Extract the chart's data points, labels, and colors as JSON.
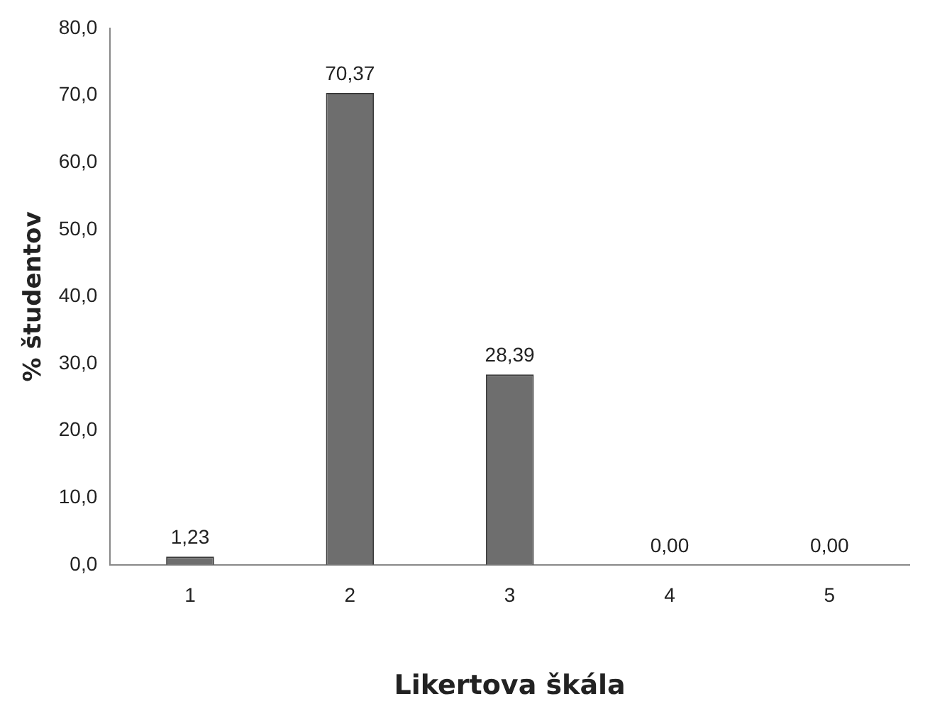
{
  "chart_data": {
    "type": "bar",
    "xlabel": "Likertova škála",
    "ylabel": "% študentov",
    "categories": [
      "1",
      "2",
      "3",
      "4",
      "5"
    ],
    "values": [
      1.23,
      70.37,
      28.39,
      0,
      0
    ],
    "value_labels": [
      "1,23",
      "70,37",
      "28,39",
      "0,00",
      "0,00"
    ],
    "color": "#6e6e6e",
    "ylim": [
      0,
      80
    ],
    "yticks": [
      {
        "value": 0,
        "label": "0,0"
      },
      {
        "value": 10,
        "label": "10,0"
      },
      {
        "value": 20,
        "label": "20,0"
      },
      {
        "value": 30,
        "label": "30,0"
      },
      {
        "value": 40,
        "label": "40,0"
      },
      {
        "value": 50,
        "label": "50,0"
      },
      {
        "value": 60,
        "label": "60,0"
      },
      {
        "value": 70,
        "label": "70,0"
      },
      {
        "value": 80,
        "label": "80,0"
      }
    ],
    "grid": false,
    "legend": false
  }
}
